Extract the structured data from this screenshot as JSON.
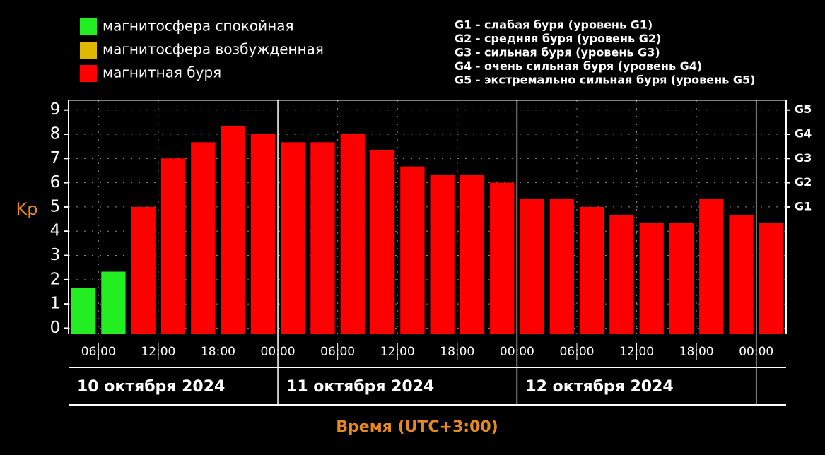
{
  "chart_data": {
    "type": "bar",
    "y_label": "Kp",
    "x_label": "Время (UTC+3:00)",
    "legend": [
      {
        "name": "магнитосфера спокойная",
        "color": "#22ee22"
      },
      {
        "name": "магнитосфера возбужденная",
        "color": "#e0b800"
      },
      {
        "name": "магнитная буря",
        "color": "#ff0000"
      }
    ],
    "storm_levels": [
      "G1 - слабая буря (уровень G1)",
      "G2 - средняя буря (уровень G2)",
      "G3 - сильная буря (уровень G3)",
      "G4 - очень сильная буря (уровень G4)",
      "G5 - экстремально сильная буря (уровень G5)"
    ],
    "values": [
      1.67,
      2.33,
      5,
      7,
      7.67,
      8.33,
      8,
      7.67,
      7.67,
      8,
      7.33,
      6.67,
      6.33,
      6.33,
      6,
      5.33,
      5.33,
      5,
      4.67,
      4.33,
      4.33,
      5.33,
      4.67,
      4.33
    ],
    "colors": [
      "#22ee22",
      "#22ee22",
      "#ff0000",
      "#ff0000",
      "#ff0000",
      "#ff0000",
      "#ff0000",
      "#ff0000",
      "#ff0000",
      "#ff0000",
      "#ff0000",
      "#ff0000",
      "#ff0000",
      "#ff0000",
      "#ff0000",
      "#ff0000",
      "#ff0000",
      "#ff0000",
      "#ff0000",
      "#ff0000",
      "#ff0000",
      "#ff0000",
      "#ff0000",
      "#ff0000"
    ],
    "xlim": [
      3,
      75
    ],
    "xticks": [
      {
        "value": 6,
        "label": "06:00"
      },
      {
        "value": 12,
        "label": "12:00"
      },
      {
        "value": 18,
        "label": "18:00"
      },
      {
        "value": 24,
        "label": "00:00"
      },
      {
        "value": 30,
        "label": "06:00"
      },
      {
        "value": 36,
        "label": "12:00"
      },
      {
        "value": 42,
        "label": "18:00"
      },
      {
        "value": 48,
        "label": "00:00"
      },
      {
        "value": 54,
        "label": "06:00"
      },
      {
        "value": 60,
        "label": "12:00"
      },
      {
        "value": 66,
        "label": "18:00"
      },
      {
        "value": 72,
        "label": "00:00"
      }
    ],
    "day_bounds": [
      24,
      48,
      72
    ],
    "days": [
      "10 октября 2024",
      "11 октября 2024",
      "12 октября 2024"
    ],
    "ylim": [
      -0.25,
      9.4
    ],
    "yticks": [
      0,
      1,
      2,
      3,
      4,
      5,
      6,
      7,
      8,
      9
    ],
    "y2ticks": [
      {
        "value": 5,
        "label": "G1"
      },
      {
        "value": 6,
        "label": "G2"
      },
      {
        "value": 7,
        "label": "G3"
      },
      {
        "value": 8,
        "label": "G4"
      },
      {
        "value": 9,
        "label": "G5"
      }
    ],
    "grid": true
  }
}
